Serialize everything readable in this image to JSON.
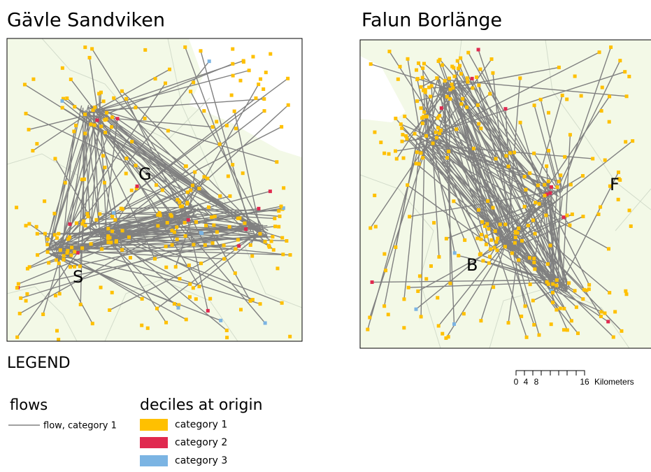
{
  "maps": [
    {
      "title": "Gävle Sandviken",
      "labels": [
        "G",
        "S"
      ]
    },
    {
      "title": "Falun Borlänge",
      "labels": [
        "F",
        "B"
      ]
    }
  ],
  "legend": {
    "title": "LEGEND",
    "flows": {
      "heading": "flows",
      "items": [
        "flow, category 1"
      ],
      "color": "#808080"
    },
    "deciles": {
      "heading": "deciles at origin",
      "items": [
        {
          "label": "category 1",
          "color": "#ffc000"
        },
        {
          "label": "category 2",
          "color": "#e0294f"
        },
        {
          "label": "category 3",
          "color": "#7bb4e3"
        }
      ]
    }
  },
  "scale_bar": {
    "labels": [
      "0",
      "4",
      "8",
      "16"
    ],
    "unit": "Kilometers"
  }
}
